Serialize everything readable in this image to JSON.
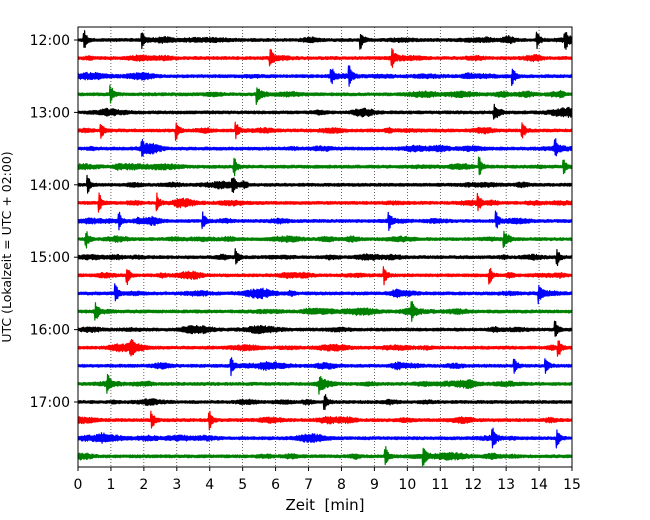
{
  "chart_data": {
    "type": "line",
    "title": "",
    "xlabel": "Zeit  [min]",
    "ylabel": "UTC (Lokalzeit = UTC + 02:00)",
    "xlim": [
      0,
      15
    ],
    "x_ticks": [
      "0",
      "1",
      "2",
      "3",
      "4",
      "5",
      "6",
      "7",
      "8",
      "9",
      "10",
      "11",
      "12",
      "13",
      "14",
      "15"
    ],
    "y_ticks": [
      {
        "label": "12:00",
        "row": 0
      },
      {
        "label": "13:00",
        "row": 4
      },
      {
        "label": "14:00",
        "row": 8
      },
      {
        "label": "15:00",
        "row": 12
      },
      {
        "label": "16:00",
        "row": 16
      },
      {
        "label": "17:00",
        "row": 20
      }
    ],
    "grid": "vertical dotted at each minute",
    "row_colors": [
      "#000000",
      "#ff0000",
      "#0000ff",
      "#008000"
    ],
    "rows": [
      {
        "start": "12:00",
        "events_min": [
          0.2,
          1.95,
          8.6,
          13.95,
          14.8
        ]
      },
      {
        "start": "12:15",
        "events_min": [
          5.85,
          9.55
        ]
      },
      {
        "start": "12:30",
        "events_min": [
          7.7,
          8.25,
          13.2
        ]
      },
      {
        "start": "12:45",
        "events_min": [
          1.0,
          5.45
        ]
      },
      {
        "start": "13:00",
        "events_min": [
          12.65
        ]
      },
      {
        "start": "13:15",
        "events_min": [
          0.7,
          3.0,
          4.8,
          13.5
        ]
      },
      {
        "start": "13:30",
        "events_min": [
          1.95,
          14.5
        ]
      },
      {
        "start": "13:45",
        "events_min": [
          4.75,
          12.2,
          14.75
        ]
      },
      {
        "start": "14:00",
        "events_min": [
          0.3,
          4.7
        ]
      },
      {
        "start": "14:15",
        "events_min": [
          0.65,
          2.4,
          12.15
        ]
      },
      {
        "start": "14:30",
        "events_min": [
          1.25,
          3.8,
          9.45,
          12.7
        ]
      },
      {
        "start": "14:45",
        "events_min": [
          0.25,
          12.95
        ]
      },
      {
        "start": "15:00",
        "events_min": [
          4.8,
          14.55
        ]
      },
      {
        "start": "15:15",
        "events_min": [
          1.5,
          9.3,
          12.5
        ]
      },
      {
        "start": "15:30",
        "events_min": [
          1.15,
          14.0
        ]
      },
      {
        "start": "15:45",
        "events_min": [
          0.55,
          10.15
        ]
      },
      {
        "start": "16:00",
        "events_min": [
          14.5
        ]
      },
      {
        "start": "16:15",
        "events_min": [
          1.6,
          14.6
        ]
      },
      {
        "start": "16:30",
        "events_min": [
          4.65,
          13.25,
          14.2
        ]
      },
      {
        "start": "16:45",
        "events_min": [
          0.9,
          7.35
        ]
      },
      {
        "start": "17:00",
        "events_min": [
          7.5
        ]
      },
      {
        "start": "17:15",
        "events_min": [
          2.25,
          4.0
        ]
      },
      {
        "start": "17:30",
        "events_min": [
          12.6,
          14.55
        ]
      },
      {
        "start": "17:45",
        "events_min": [
          9.35,
          10.5
        ]
      }
    ]
  }
}
